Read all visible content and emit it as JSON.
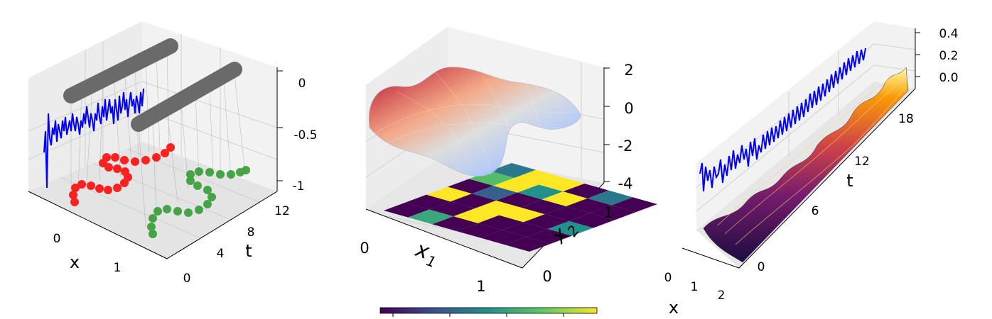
{
  "chart_data": [
    {
      "type": "3d-line",
      "xlabel": "x",
      "ylabel": "t",
      "x_ticks": [
        "0",
        "1"
      ],
      "t_ticks": [
        "0",
        "4",
        "8",
        "12"
      ],
      "z_ticks": [
        "0",
        "-0.5",
        "-1"
      ],
      "zlim": [
        -1,
        0
      ],
      "series": [
        {
          "kind": "thick-bars",
          "color": "#6a6a6a"
        },
        {
          "kind": "noisy-trace",
          "color": "#0000ff"
        },
        {
          "kind": "trajectory",
          "color": "#ff0000"
        },
        {
          "kind": "trajectory",
          "color": "#2a9a2a"
        }
      ],
      "grid": true
    },
    {
      "type": "3d-surface",
      "xlabel": "x",
      "xlabel_sub": "1",
      "ylabel": "x",
      "ylabel_sub": "2",
      "x_ticks": [
        "0",
        "1"
      ],
      "y_ticks": [
        "0",
        "1"
      ],
      "z_ticks": [
        "2",
        "0",
        "-2",
        "-4"
      ],
      "zlim": [
        -4,
        2
      ],
      "colormap_surface": "coolwarm",
      "heatmap_floor": {
        "colormap": "viridis",
        "rows": 6,
        "cols": 6,
        "values": [
          [
            0.0,
            0.0,
            1.0,
            0.0,
            0.7,
            0.4
          ],
          [
            0.6,
            0.0,
            0.0,
            0.3,
            1.0,
            1.0
          ],
          [
            0.0,
            1.0,
            1.0,
            0.0,
            0.5,
            1.0
          ],
          [
            0.0,
            0.0,
            1.0,
            0.0,
            1.0,
            0.0
          ],
          [
            0.0,
            0.0,
            0.0,
            0.0,
            0.0,
            0.4
          ],
          [
            0.0,
            0.0,
            0.5,
            0.0,
            0.0,
            0.0
          ]
        ]
      },
      "colorbar": {
        "colormap": "viridis",
        "orientation": "horizontal",
        "tick_count": 4
      },
      "grid": true
    },
    {
      "type": "3d-surface",
      "xlabel": "x",
      "ylabel": "t",
      "x_ticks": [
        "0",
        "1",
        "2"
      ],
      "t_ticks": [
        "0",
        "6",
        "12",
        "18"
      ],
      "z_ticks": [
        "0.4",
        "0.2",
        "0.0"
      ],
      "zlim": [
        0,
        0.4
      ],
      "colormap_surface": "inferno",
      "series": [
        {
          "kind": "noisy-trace",
          "color": "#0000ff"
        }
      ],
      "grid": true
    }
  ]
}
